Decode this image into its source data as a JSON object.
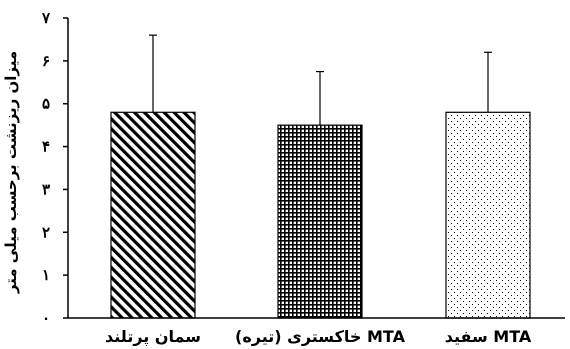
{
  "chart_data": {
    "type": "bar",
    "title": "",
    "xlabel": "",
    "ylabel": "میزان ریزنشت برحسب میلی متر",
    "ylim": [
      0,
      7
    ],
    "yticks": [
      {
        "value": 0,
        "label": "۰"
      },
      {
        "value": 1,
        "label": "۱"
      },
      {
        "value": 2,
        "label": "۲"
      },
      {
        "value": 3,
        "label": "۳"
      },
      {
        "value": 4,
        "label": "۴"
      },
      {
        "value": 5,
        "label": "۵"
      },
      {
        "value": 6,
        "label": "۶"
      },
      {
        "value": 7,
        "label": "۷"
      }
    ],
    "categories": [
      "سمان پرتلند",
      "MTA خاکستری (تیره)",
      "MTA سفید"
    ],
    "values": [
      4.8,
      4.5,
      4.8
    ],
    "error_upper": [
      6.6,
      5.75,
      6.2
    ],
    "fill_patterns": [
      "diagonal-stripes",
      "grid",
      "dots"
    ],
    "grid": false,
    "legend": "none"
  }
}
